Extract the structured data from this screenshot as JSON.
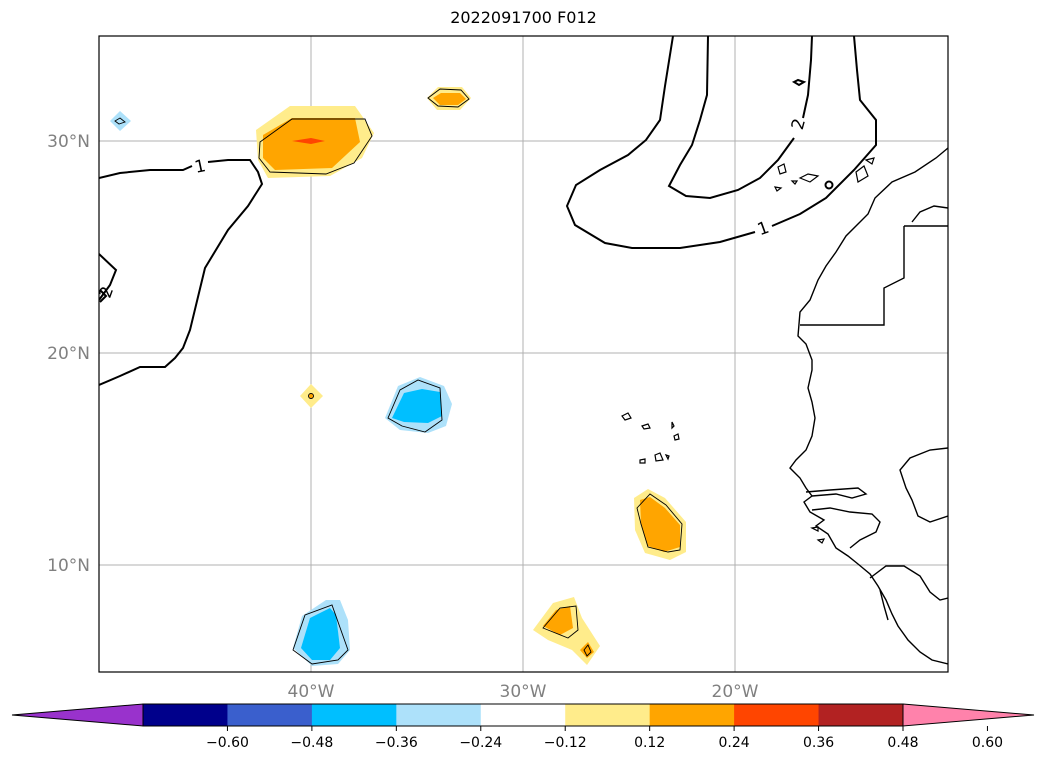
{
  "title": "2022091700 F012",
  "lat_labels": [
    "30°N",
    "20°N",
    "10°N"
  ],
  "lon_labels": [
    "40°W",
    "30°W",
    "20°W"
  ],
  "contour_labels": [
    "1",
    "2",
    "1",
    "2",
    "0"
  ],
  "colorbar": {
    "colors": [
      "#9932CC",
      "#00008B",
      "#3A5FCD",
      "#00BFFF",
      "#ADE1FA",
      "#FFFFFF",
      "#FFEC8B",
      "#FFA500",
      "#FF4500",
      "#B22222",
      "#FF82AB"
    ],
    "tick_labels": [
      "−0.60",
      "−0.48",
      "−0.36",
      "−0.24",
      "−0.12",
      "0.12",
      "0.24",
      "0.36",
      "0.48",
      "0.60"
    ]
  }
}
